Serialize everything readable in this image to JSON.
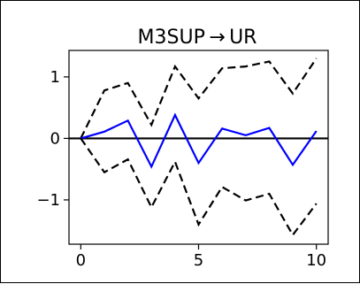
{
  "chart_data": {
    "type": "line",
    "title": "M3SUP → UR",
    "xlabel": "",
    "ylabel": "",
    "x": [
      0,
      1,
      2,
      3,
      4,
      5,
      6,
      7,
      8,
      9,
      10
    ],
    "xlim": [
      -0.5,
      10.5
    ],
    "ylim": [
      -1.72,
      1.43
    ],
    "xticks": [
      0,
      5,
      10
    ],
    "xtick_labels": [
      "0",
      "5",
      "10"
    ],
    "yticks": [
      1,
      0,
      -1
    ],
    "ytick_labels": [
      "1",
      "0",
      "−1"
    ],
    "grid": false,
    "zero_line": 0,
    "series": [
      {
        "style": "dashed",
        "color": "#000000",
        "values": [
          0,
          0.78,
          0.9,
          0.22,
          1.17,
          0.65,
          1.14,
          1.17,
          1.25,
          0.73,
          1.3
        ]
      },
      {
        "style": "solid",
        "color": "#0000ff",
        "values": [
          0,
          0.11,
          0.29,
          -0.46,
          0.38,
          -0.4,
          0.16,
          0.05,
          0.17,
          -0.43,
          0.12
        ]
      },
      {
        "style": "dashed",
        "color": "#000000",
        "values": [
          0,
          -0.55,
          -0.34,
          -1.12,
          -0.38,
          -1.4,
          -0.79,
          -1.01,
          -0.9,
          -1.57,
          -1.06
        ]
      }
    ]
  }
}
